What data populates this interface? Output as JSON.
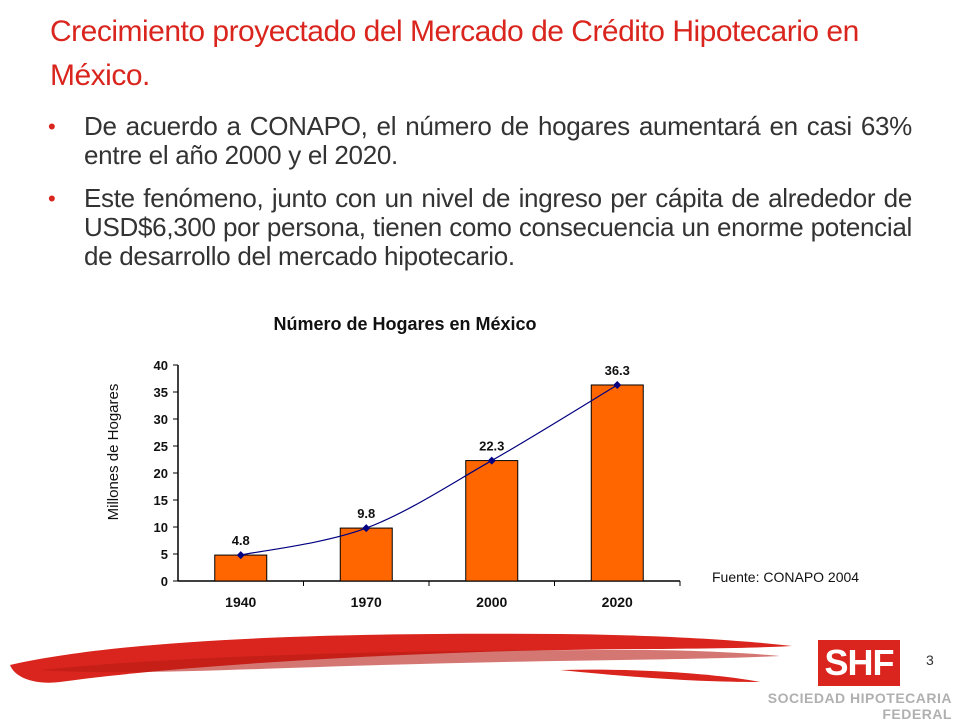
{
  "slide": {
    "title": "Crecimiento proyectado del Mercado de Crédito Hipotecario en México.",
    "bullets": [
      "De acuerdo a CONAPO, el número de hogares aumentará en casi 63% entre el año 2000 y el 2020.",
      "Este fenómeno, junto con un nivel de ingreso per cápita de alrededor de USD$6,300 por persona, tienen como consecuencia un enorme potencial de desarrollo del mercado hipotecario."
    ],
    "page_number": "3",
    "logo_text": "SHF",
    "logo_caption": "SOCIEDAD HIPOTECARIA FEDERAL"
  },
  "chart_data": {
    "type": "bar",
    "title": "Número de Hogares en México",
    "ylabel": "Millones de Hogares",
    "xlabel": "",
    "categories": [
      "1940",
      "1970",
      "2000",
      "2020"
    ],
    "values": [
      4.8,
      9.8,
      22.3,
      36.3
    ],
    "data_labels": [
      "4.8",
      "9.8",
      "22.3",
      "36.3"
    ],
    "ylim": [
      0,
      40
    ],
    "yticks": [
      0,
      5,
      10,
      15,
      20,
      25,
      30,
      35,
      40
    ],
    "overlay": "line",
    "grid": false,
    "source": "Fuente: CONAPO 2004",
    "colors": {
      "bar": "#ff6600",
      "bar_stroke": "#000000",
      "line": "#000080",
      "marker": "#000080"
    }
  },
  "colors": {
    "accent": "#d9251d"
  }
}
